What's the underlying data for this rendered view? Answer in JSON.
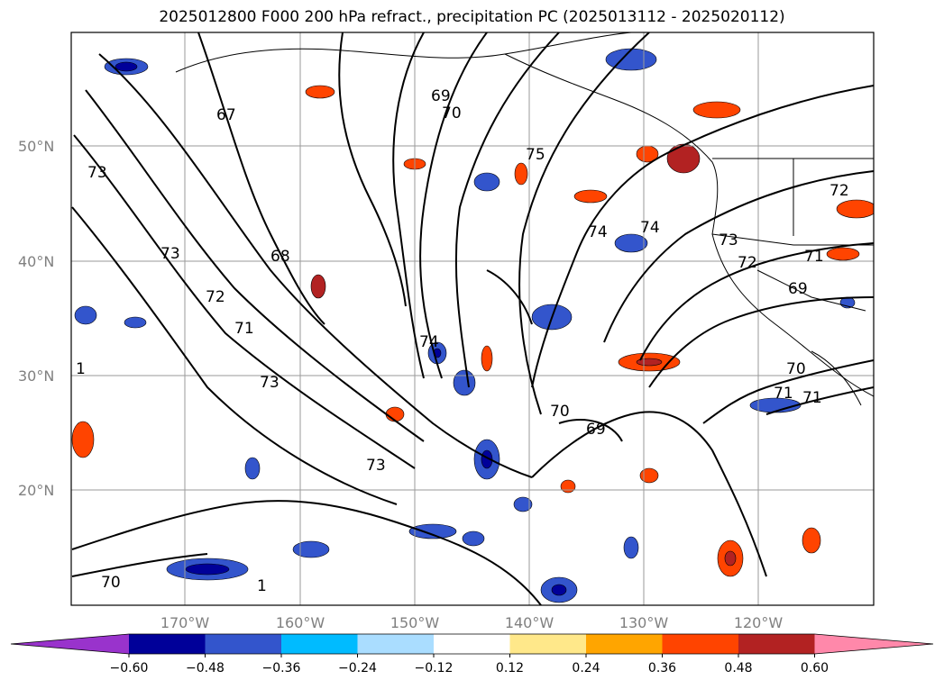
{
  "title": "2025012800 F000 200 hPa refract., precipitation PC (2025013112 - 2025020112)",
  "map": {
    "lat_labels": [
      "50°N",
      "40°N",
      "30°N",
      "20°N"
    ],
    "lon_labels": [
      "170°W",
      "160°W",
      "150°W",
      "140°W",
      "130°W",
      "120°W"
    ],
    "contour_labels": [
      "67",
      "69",
      "70",
      "73",
      "75",
      "73",
      "68",
      "74",
      "74",
      "73",
      "71",
      "72",
      "71",
      "69",
      "72",
      "73",
      "71",
      "74",
      "70",
      "69",
      "73",
      "70",
      "71",
      "72",
      "70",
      "1",
      "1"
    ],
    "contour_color": "#000000",
    "coast_color": "#000000"
  },
  "colorbar": {
    "colors": [
      "#9933cc",
      "#000099",
      "#3355cc",
      "#00bbff",
      "#aaddff",
      "#ffffff",
      "#ffe88a",
      "#ffa500",
      "#ff4400",
      "#b22222",
      "#ff88aa"
    ],
    "tick_labels": [
      "−0.60",
      "−0.48",
      "−0.36",
      "−0.24",
      "−0.12",
      "0.12",
      "0.24",
      "0.36",
      "0.48",
      "0.60"
    ],
    "extend": "both"
  }
}
